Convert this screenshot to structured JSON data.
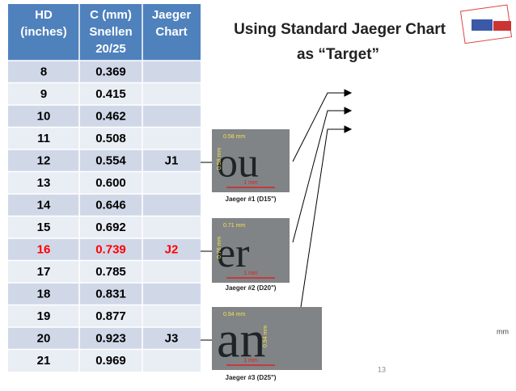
{
  "title": {
    "line1": "Using Standard Jaeger Chart",
    "line2": "as “Target”"
  },
  "table": {
    "header": [
      [
        "HD",
        "(inches)"
      ],
      [
        "C (mm)",
        "Snellen",
        "20/25"
      ],
      [
        "Jaeger",
        "Chart"
      ]
    ],
    "rows": [
      {
        "hd": "8",
        "c": "0.369"
      },
      {
        "hd": "9",
        "c": "0.415"
      },
      {
        "hd": "10",
        "c": "0.462"
      },
      {
        "hd": "11",
        "c": "0.508"
      },
      {
        "hd": "12",
        "c": "0.554",
        "jaeger": "J1"
      },
      {
        "hd": "13",
        "c": "0.600"
      },
      {
        "hd": "14",
        "c": "0.646"
      },
      {
        "hd": "15",
        "c": "0.692"
      },
      {
        "hd": "16",
        "c": "0.739",
        "jaeger": "J2",
        "color": "#ff0000"
      },
      {
        "hd": "17",
        "c": "0.785"
      },
      {
        "hd": "18",
        "c": "0.831"
      },
      {
        "hd": "19",
        "c": "0.877"
      },
      {
        "hd": "20",
        "c": "0.923",
        "jaeger": "J3"
      },
      {
        "hd": "21",
        "c": "0.969"
      }
    ]
  },
  "images": [
    {
      "letters": "ou",
      "width_label": "0.58 mm",
      "height_label": "0.58 mm",
      "scale_label": "1 mm",
      "caption": "Jaeger #1 (D15\")"
    },
    {
      "letters": "er",
      "width_label": "0.71 mm",
      "height_label": "0.76 mm",
      "scale_label": "1 mm",
      "caption": "Jaeger #2 (D20\")"
    },
    {
      "letters": "an",
      "width_label": "0.94 mm",
      "height_label": "0.94 mm",
      "scale_label": "1 mm",
      "caption": "Jaeger #3 (D25\")"
    }
  ],
  "unit_note": "mm",
  "page_number": "13"
}
